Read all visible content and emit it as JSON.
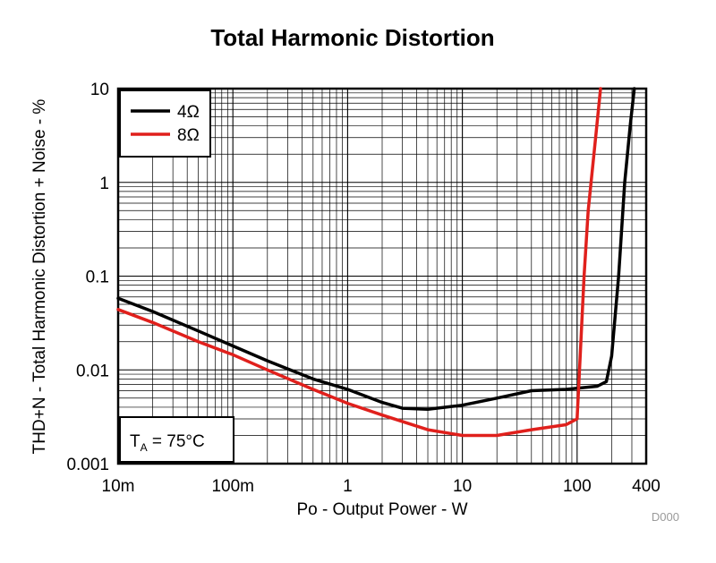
{
  "chart_data": {
    "type": "line",
    "title": "Total Harmonic Distortion",
    "xlabel": "Po - Output Power - W",
    "ylabel": "THD+N - Total Harmonic Distortion + Noise - %",
    "x_scale": "log",
    "y_scale": "log",
    "xlim": [
      0.01,
      400
    ],
    "ylim": [
      0.001,
      10
    ],
    "grid": true,
    "legend_position": "top-left",
    "x_ticks": [
      {
        "value": 0.01,
        "label": "10m"
      },
      {
        "value": 0.1,
        "label": "100m"
      },
      {
        "value": 1,
        "label": "1"
      },
      {
        "value": 10,
        "label": "10"
      },
      {
        "value": 100,
        "label": "100"
      },
      {
        "value": 400,
        "label": "400"
      }
    ],
    "y_ticks": [
      {
        "value": 0.001,
        "label": "0.001"
      },
      {
        "value": 0.01,
        "label": "0.01"
      },
      {
        "value": 0.1,
        "label": "0.1"
      },
      {
        "value": 1,
        "label": "1"
      },
      {
        "value": 10,
        "label": "10"
      }
    ],
    "series": [
      {
        "name": "4Ω",
        "color": "#000000",
        "points": [
          [
            0.01,
            0.058
          ],
          [
            0.02,
            0.042
          ],
          [
            0.05,
            0.026
          ],
          [
            0.1,
            0.018
          ],
          [
            0.2,
            0.0125
          ],
          [
            0.5,
            0.008
          ],
          [
            1,
            0.0062
          ],
          [
            2,
            0.0045
          ],
          [
            3,
            0.0039
          ],
          [
            5,
            0.0038
          ],
          [
            10,
            0.0042
          ],
          [
            20,
            0.005
          ],
          [
            40,
            0.006
          ],
          [
            80,
            0.0062
          ],
          [
            150,
            0.0067
          ],
          [
            180,
            0.0075
          ],
          [
            200,
            0.014
          ],
          [
            230,
            0.1
          ],
          [
            260,
            1
          ],
          [
            290,
            4
          ],
          [
            315,
            10
          ]
        ]
      },
      {
        "name": "8Ω",
        "color": "#e0201c",
        "points": [
          [
            0.01,
            0.044
          ],
          [
            0.02,
            0.032
          ],
          [
            0.05,
            0.02
          ],
          [
            0.1,
            0.0145
          ],
          [
            0.2,
            0.01
          ],
          [
            0.5,
            0.0062
          ],
          [
            1,
            0.0044
          ],
          [
            2,
            0.0033
          ],
          [
            5,
            0.0023
          ],
          [
            10,
            0.002
          ],
          [
            20,
            0.002
          ],
          [
            40,
            0.0023
          ],
          [
            80,
            0.0026
          ],
          [
            100,
            0.003
          ],
          [
            105,
            0.01
          ],
          [
            115,
            0.1
          ],
          [
            125,
            0.5
          ],
          [
            145,
            3
          ],
          [
            160,
            10
          ]
        ]
      }
    ],
    "annotations": [
      {
        "text_main": "T",
        "text_sub": "A",
        "text_rest": " = 75°C",
        "position": "bottom-left"
      }
    ]
  },
  "footer_code": "D000"
}
